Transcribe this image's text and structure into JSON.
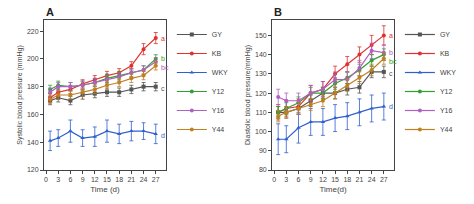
{
  "chart_data": [
    {
      "type": "line",
      "title": "A",
      "xlabel": "Time (d)",
      "ylabel": "Systolic blood pressure (mmHg)",
      "x": [
        1,
        3,
        6,
        9,
        12,
        15,
        18,
        21,
        24,
        27
      ],
      "xlim": [
        -0.5,
        29.5
      ],
      "xticks": [
        0,
        3,
        6,
        9,
        12,
        15,
        18,
        21,
        24,
        27
      ],
      "ylim": [
        120,
        228
      ],
      "yticks": [
        120,
        140,
        160,
        180,
        200,
        220
      ],
      "grid": false,
      "legend": "right",
      "series": [
        {
          "name": "GY",
          "color": "#555555",
          "marker": "square",
          "values": [
            170,
            172,
            170,
            174,
            175,
            176,
            176,
            178,
            180,
            180
          ],
          "errors": [
            3,
            3,
            3,
            3,
            3,
            3,
            3,
            3,
            3,
            3
          ]
        },
        {
          "name": "KB",
          "color": "#e03030",
          "marker": "circle",
          "values": [
            172,
            176,
            178,
            182,
            185,
            188,
            190,
            195,
            207,
            215
          ],
          "errors": [
            3,
            3,
            3,
            3,
            3,
            3,
            3,
            3,
            4,
            4
          ]
        },
        {
          "name": "WKY",
          "color": "#3060d0",
          "marker": "triangle-up",
          "values": [
            141,
            143,
            148,
            143,
            144,
            148,
            146,
            148,
            148,
            146
          ],
          "errors": [
            7,
            6,
            8,
            6,
            7,
            8,
            7,
            7,
            6,
            7
          ]
        },
        {
          "name": "Y12",
          "color": "#30a030",
          "marker": "circle",
          "values": [
            178,
            181,
            180,
            181,
            183,
            186,
            188,
            190,
            192,
            200
          ],
          "errors": [
            3,
            3,
            3,
            3,
            3,
            3,
            3,
            3,
            3,
            3
          ]
        },
        {
          "name": "Y16",
          "color": "#b060c0",
          "marker": "circle",
          "values": [
            176,
            180,
            180,
            181,
            183,
            185,
            187,
            190,
            192,
            198
          ],
          "errors": [
            3,
            3,
            3,
            3,
            3,
            3,
            3,
            3,
            3,
            3
          ]
        },
        {
          "name": "Y44",
          "color": "#c08020",
          "marker": "circle",
          "values": [
            171,
            174,
            174,
            176,
            178,
            181,
            183,
            186,
            188,
            195
          ],
          "errors": [
            3,
            3,
            3,
            3,
            3,
            3,
            3,
            3,
            3,
            3
          ]
        }
      ],
      "annotations": [
        {
          "text": "a",
          "x": 27.5,
          "y": 215,
          "color": "#e03030"
        },
        {
          "text": "b",
          "x": 27.5,
          "y": 200,
          "color": "#30a030"
        },
        {
          "text": "bc",
          "x": 27.5,
          "y": 196,
          "color": "#b060c0"
        },
        {
          "text": "c",
          "x": 27.5,
          "y": 179,
          "color": "#555555"
        },
        {
          "text": "d",
          "x": 27.5,
          "y": 145,
          "color": "#3060d0"
        }
      ]
    },
    {
      "type": "line",
      "title": "B",
      "xlabel": "Time(d)",
      "ylabel": "Diastolic blood pressure(mmHg)",
      "x": [
        1,
        3,
        6,
        9,
        12,
        15,
        18,
        21,
        24,
        27
      ],
      "xlim": [
        -0.5,
        29.5
      ],
      "xticks": [
        0,
        3,
        6,
        9,
        12,
        15,
        18,
        21,
        24,
        27
      ],
      "ylim": [
        80,
        158
      ],
      "yticks": [
        80,
        90,
        100,
        110,
        120,
        130,
        140,
        150
      ],
      "grid": false,
      "legend": "right",
      "series": [
        {
          "name": "GY",
          "color": "#555555",
          "marker": "square",
          "values": [
            110,
            110,
            112,
            116,
            120,
            120,
            122,
            123,
            131,
            131
          ],
          "errors": [
            3,
            3,
            3,
            3,
            3,
            3,
            3,
            3,
            3,
            3
          ]
        },
        {
          "name": "KB",
          "color": "#e03030",
          "marker": "circle",
          "values": [
            110,
            112,
            113,
            120,
            122,
            130,
            135,
            140,
            145,
            150
          ],
          "errors": [
            4,
            4,
            4,
            4,
            4,
            4,
            4,
            4,
            5,
            5
          ]
        },
        {
          "name": "WKY",
          "color": "#3060d0",
          "marker": "triangle-up",
          "values": [
            96,
            96,
            102,
            105,
            105,
            107,
            108,
            110,
            112,
            113
          ],
          "errors": [
            8,
            7,
            8,
            7,
            7,
            7,
            7,
            7,
            7,
            7
          ]
        },
        {
          "name": "Y12",
          "color": "#30a030",
          "marker": "circle",
          "values": [
            110,
            112,
            115,
            120,
            120,
            125,
            128,
            132,
            137,
            140
          ],
          "errors": [
            3,
            3,
            3,
            3,
            3,
            3,
            3,
            3,
            3,
            3
          ]
        },
        {
          "name": "Y16",
          "color": "#b060c0",
          "marker": "circle",
          "values": [
            118,
            116,
            116,
            120,
            122,
            127,
            127,
            133,
            142,
            141
          ],
          "errors": [
            4,
            4,
            4,
            4,
            4,
            4,
            4,
            4,
            4,
            4
          ]
        },
        {
          "name": "Y44",
          "color": "#c08020",
          "marker": "circle",
          "values": [
            108,
            110,
            112,
            114,
            116,
            120,
            124,
            128,
            132,
            138
          ],
          "errors": [
            3,
            3,
            3,
            3,
            3,
            3,
            3,
            3,
            3,
            3
          ]
        }
      ],
      "annotations": [
        {
          "text": "a",
          "x": 27.5,
          "y": 150,
          "color": "#e03030"
        },
        {
          "text": "b",
          "x": 27.5,
          "y": 141,
          "color": "#b060c0"
        },
        {
          "text": "bc",
          "x": 27.5,
          "y": 137,
          "color": "#30a030"
        },
        {
          "text": "c",
          "x": 27.5,
          "y": 130,
          "color": "#555555"
        },
        {
          "text": "d",
          "x": 27.5,
          "y": 113,
          "color": "#3060d0"
        }
      ]
    }
  ]
}
